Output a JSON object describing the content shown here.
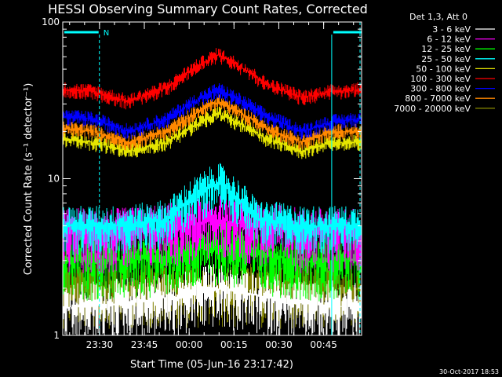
{
  "chart_data": {
    "type": "line",
    "title": "HESSI Observing Summary Count Rates, Corrected",
    "xlabel": "Start Time (05-Jun-16 23:17:42)",
    "ylabel": "Corrected Count Rate (s⁻¹ detector⁻¹)",
    "yscale": "log",
    "ylim": [
      1,
      100
    ],
    "yticks": [
      "1",
      "10",
      "100"
    ],
    "xrange_minutes": [
      0,
      100
    ],
    "xticks": [
      {
        "label": "23:30",
        "t": 12.3
      },
      {
        "label": "23:45",
        "t": 27.3
      },
      {
        "label": "00:00",
        "t": 42.3
      },
      {
        "label": "00:15",
        "t": 57.3
      },
      {
        "label": "00:30",
        "t": 72.3
      },
      {
        "label": "00:45",
        "t": 87.3
      }
    ],
    "legend": {
      "title": "Det 1,3, Att 0",
      "placement": "outside-right",
      "entries": [
        {
          "label": "3 - 6 keV",
          "color": "#ffffff"
        },
        {
          "label": "6 - 12 keV",
          "color": "#ff00ff"
        },
        {
          "label": "12 - 25 keV",
          "color": "#00ff00"
        },
        {
          "label": "25 - 50 keV",
          "color": "#00ffff"
        },
        {
          "label": "50 - 100 keV",
          "color": "#e6e600"
        },
        {
          "label": "100 - 300 keV",
          "color": "#ff0000"
        },
        {
          "label": "300 - 800 keV",
          "color": "#0000ff"
        },
        {
          "label": "800 - 7000 keV",
          "color": "#ff8800"
        },
        {
          "label": "7000 - 20000 keV",
          "color": "#808000"
        }
      ]
    },
    "series": [
      {
        "name": "3 - 6 keV",
        "color": "#ffffff",
        "kind": "discrete",
        "t": [
          0,
          20,
          42,
          50,
          65,
          80,
          100
        ],
        "values": [
          1.5,
          1.6,
          1.8,
          2.0,
          1.8,
          1.6,
          1.5
        ]
      },
      {
        "name": "6 - 12 keV",
        "color": "#ff00ff",
        "kind": "discrete",
        "t": [
          0,
          20,
          42,
          50,
          65,
          80,
          100
        ],
        "values": [
          4.5,
          4.5,
          5.0,
          5.5,
          5.0,
          4.5,
          4.5
        ]
      },
      {
        "name": "12 - 25 keV",
        "color": "#00ff00",
        "kind": "discrete",
        "t": [
          0,
          20,
          42,
          50,
          65,
          80,
          100
        ],
        "values": [
          3.0,
          3.0,
          3.3,
          3.8,
          3.3,
          3.0,
          3.0
        ]
      },
      {
        "name": "25 - 50 keV",
        "color": "#00ffff",
        "kind": "discrete",
        "t": [
          0,
          20,
          35,
          52,
          65,
          80,
          100
        ],
        "values": [
          5.0,
          5.0,
          5.5,
          9.5,
          5.5,
          5.0,
          5.0
        ]
      },
      {
        "name": "50 - 100 keV",
        "color": "#e6e600",
        "kind": "band",
        "t": [
          0,
          10,
          22,
          35,
          52,
          68,
          80,
          90,
          100
        ],
        "values": [
          18,
          17,
          15,
          17,
          26,
          18,
          15,
          17,
          17
        ]
      },
      {
        "name": "100 - 300 keV",
        "color": "#ff0000",
        "kind": "band",
        "t": [
          0,
          10,
          22,
          35,
          52,
          68,
          80,
          90,
          100
        ],
        "values": [
          37,
          36,
          31,
          38,
          62,
          40,
          33,
          36,
          37
        ]
      },
      {
        "name": "300 - 800 keV",
        "color": "#0000ff",
        "kind": "band",
        "t": [
          0,
          10,
          22,
          35,
          52,
          68,
          80,
          90,
          100
        ],
        "values": [
          25,
          24,
          20,
          24,
          37,
          25,
          20,
          23,
          24
        ]
      },
      {
        "name": "800 - 7000 keV",
        "color": "#ff8800",
        "kind": "band",
        "t": [
          0,
          10,
          22,
          35,
          52,
          68,
          80,
          90,
          100
        ],
        "values": [
          21,
          20,
          17,
          20,
          31,
          21,
          17,
          20,
          20
        ]
      },
      {
        "name": "7000 - 20000 keV",
        "color": "#808000",
        "kind": "discrete",
        "t": [
          0,
          20,
          42,
          50,
          65,
          80,
          100
        ],
        "values": [
          2.0,
          2.0,
          2.0,
          2.0,
          2.0,
          2.0,
          2.0
        ]
      }
    ],
    "annotations": [
      {
        "label": "N",
        "type": "night-marker",
        "t_start": 0,
        "t_end": 12,
        "color": "#00ffff"
      },
      {
        "type": "night-marker",
        "t_start": 90,
        "t_end": 100,
        "color": "#00ffff"
      }
    ],
    "footer_date": "30-Oct-2017 18:53"
  }
}
